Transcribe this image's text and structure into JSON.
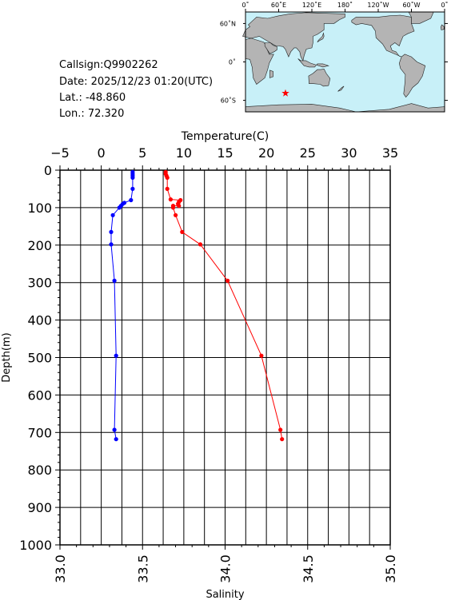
{
  "info": {
    "callsign": "Callsign:Q9902262",
    "date": "Date:  2025/12/23 01:20(UTC)",
    "lat": "Lat.:  -48.860",
    "lon": "Lon.:   72.320"
  },
  "map": {
    "lon_labels": [
      "0˚",
      "60˚E",
      "120˚E",
      "180˚",
      "120˚W",
      "60˚W",
      "0˚"
    ],
    "lat_labels": [
      "60˚N",
      "0˚",
      "60˚S"
    ],
    "station_marker": "red-star",
    "colors": {
      "ocean": "#c8f0f8",
      "land": "#b4b4b4",
      "marker": "#ff0000"
    }
  },
  "chart_data": {
    "type": "line",
    "top_axis": {
      "label": "Temperature(C)",
      "ticks": [
        "−5",
        "0",
        "5",
        "10",
        "15",
        "20",
        "25",
        "30",
        "35"
      ],
      "range": [
        -5,
        35
      ]
    },
    "bottom_axis": {
      "label": "Salinity",
      "ticks": [
        "33.0",
        "33.5",
        "34.0",
        "34.5",
        "35.0"
      ],
      "range": [
        33.0,
        35.0
      ]
    },
    "y_axis": {
      "label": "Depth(m)",
      "ticks": [
        "0",
        "100",
        "200",
        "300",
        "400",
        "500",
        "600",
        "700",
        "800",
        "900",
        "1000"
      ],
      "range": [
        0,
        1000
      ],
      "inverted": true
    },
    "grid": true,
    "series": [
      {
        "axis": "temperature",
        "color": "#ff0000",
        "points": [
          [
            7.8,
            5
          ],
          [
            7.8,
            10
          ],
          [
            7.9,
            15
          ],
          [
            8.0,
            20
          ],
          [
            8.0,
            50
          ],
          [
            8.4,
            78
          ],
          [
            9.6,
            80
          ],
          [
            9.4,
            85
          ],
          [
            9.3,
            90
          ],
          [
            9.4,
            95
          ],
          [
            8.7,
            95
          ],
          [
            8.7,
            100
          ],
          [
            9.0,
            120
          ],
          [
            9.8,
            165
          ],
          [
            12.0,
            198
          ],
          [
            15.3,
            295
          ],
          [
            19.4,
            495
          ],
          [
            21.7,
            693
          ],
          [
            21.9,
            718
          ]
        ]
      },
      {
        "axis": "salinity",
        "color": "#0000ff",
        "points": [
          [
            33.44,
            5
          ],
          [
            33.44,
            10
          ],
          [
            33.44,
            15
          ],
          [
            33.44,
            20
          ],
          [
            33.44,
            50
          ],
          [
            33.43,
            80
          ],
          [
            33.39,
            87
          ],
          [
            33.38,
            90
          ],
          [
            33.37,
            95
          ],
          [
            33.36,
            100
          ],
          [
            33.32,
            120
          ],
          [
            33.31,
            165
          ],
          [
            33.31,
            198
          ],
          [
            33.33,
            295
          ],
          [
            33.34,
            495
          ],
          [
            33.33,
            693
          ],
          [
            33.34,
            718
          ]
        ]
      }
    ]
  }
}
